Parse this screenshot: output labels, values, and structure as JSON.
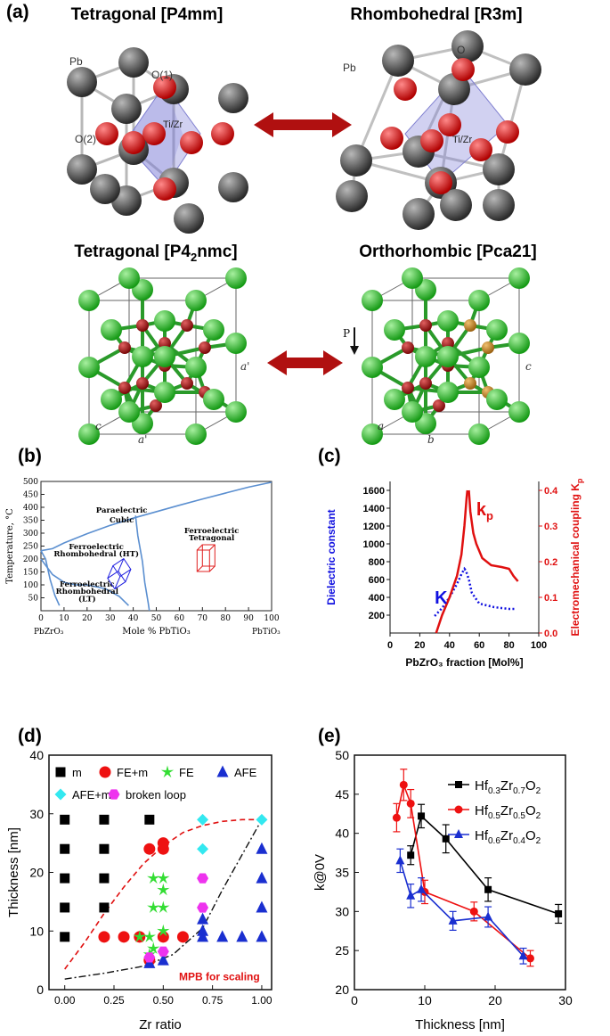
{
  "panel_a": {
    "label": "(a)",
    "structures": [
      {
        "title": "Tetragonal [P4mm]",
        "labels": [
          "Pb",
          "O(1)",
          "O(2)",
          "Ti/Zr"
        ]
      },
      {
        "title": "Rhombohedral [R3m]",
        "labels": [
          "Pb",
          "O",
          "Ti/Zr"
        ]
      },
      {
        "title_main": "Tetragonal [P4",
        "title_sub": "2",
        "title_end": "nmc]",
        "labels": [
          "a'",
          "a'",
          "c"
        ]
      },
      {
        "title": "Orthorhombic [Pca21]",
        "labels": [
          "P",
          "a",
          "b",
          "c"
        ]
      }
    ],
    "colors": {
      "pb": "#4a4a4a",
      "o": "#e01010",
      "octa": "#7b7bd8",
      "hf": "#22c022",
      "o2": "#a01010",
      "ox_y": "#c98a20",
      "arrow": "#b01010"
    }
  },
  "chart_data": [
    {
      "type": "phase-diagram",
      "panel": "(b)",
      "xlabel": "Mole % PbTiO₃",
      "ylabel": "Temperature, °C",
      "xlim": [
        0,
        100
      ],
      "ylim": [
        0,
        500
      ],
      "xticks": [
        0,
        10,
        20,
        30,
        40,
        50,
        60,
        70,
        80,
        90,
        100
      ],
      "yticks": [
        50,
        100,
        150,
        200,
        250,
        300,
        350,
        400,
        450,
        500
      ],
      "x_end_labels": [
        "PbZrO₃",
        "PbTiO₃"
      ],
      "regions": [
        "Paraelectric",
        "Cubic",
        "Ferroelectric",
        "Tetragonal",
        "Ferroelectric",
        "Rhombohedral (HT)",
        "Ferroelectric",
        "Rhombohedral",
        "(LT)"
      ],
      "curves": [
        {
          "name": "Curie",
          "x": [
            0,
            5,
            10,
            20,
            30,
            40,
            50,
            60,
            70,
            80,
            90,
            100
          ],
          "y": [
            232,
            240,
            262,
            298,
            330,
            358,
            383,
            408,
            432,
            455,
            478,
            497
          ]
        },
        {
          "name": "MPB",
          "x": [
            41,
            42,
            44,
            45,
            46.5,
            47
          ],
          "y": [
            368,
            290,
            190,
            110,
            30,
            0
          ]
        },
        {
          "name": "R-HT/LT",
          "x": [
            0,
            5,
            10,
            15,
            20,
            28,
            34,
            38
          ],
          "y": [
            200,
            140,
            110,
            100,
            100,
            85,
            55,
            20
          ]
        },
        {
          "name": "left",
          "x": [
            0,
            2,
            4,
            6,
            8
          ],
          "y": [
            232,
            200,
            120,
            60,
            20
          ]
        }
      ],
      "colors": {
        "line": "#5b8fd0",
        "tet": "#e02020",
        "rho": "#2020e0"
      }
    },
    {
      "type": "line",
      "panel": "(c)",
      "xlabel": "PbZrO₃ fraction [Mol%]",
      "ylabel_left": "Dielectric constant",
      "ylabel_right_main": "Electromechanical coupling K",
      "ylabel_right_sub": "p",
      "xlim": [
        0,
        100
      ],
      "ylim_left": [
        0,
        1700
      ],
      "ylim_right": [
        0,
        0.425
      ],
      "xticks": [
        0,
        20,
        40,
        60,
        80,
        100
      ],
      "yticks_left": [
        200,
        400,
        600,
        800,
        1000,
        1200,
        1400,
        1600
      ],
      "yticks_right": [
        0.0,
        0.1,
        0.2,
        0.3,
        0.4
      ],
      "series": [
        {
          "name": "K",
          "axis": "left",
          "style": "dotted",
          "color": "#1010e0",
          "x": [
            30,
            35,
            40,
            45,
            48,
            50,
            51,
            53,
            55,
            60,
            70,
            80,
            85
          ],
          "y": [
            190,
            280,
            400,
            550,
            660,
            720,
            700,
            600,
            450,
            330,
            290,
            270,
            270
          ]
        },
        {
          "name": "k",
          "sub": "p",
          "axis": "right",
          "style": "solid",
          "color": "#e01010",
          "x": [
            31,
            35,
            40,
            45,
            48,
            50,
            51.5,
            52
          ],
          "y": [
            0.0,
            0.05,
            0.1,
            0.16,
            0.22,
            0.3,
            0.38,
            0.4
          ]
        },
        {
          "name": "k_p_right",
          "axis": "right",
          "style": "solid",
          "color": "#e01010",
          "x": [
            53,
            54,
            56,
            58,
            62,
            68,
            75,
            80,
            83,
            86
          ],
          "y": [
            0.4,
            0.34,
            0.28,
            0.25,
            0.21,
            0.19,
            0.185,
            0.18,
            0.16,
            0.145
          ]
        }
      ]
    },
    {
      "type": "scatter",
      "panel": "(d)",
      "xlabel": "Zr ratio",
      "ylabel": "Thickness [nm]",
      "xlim": [
        -0.08,
        1.05
      ],
      "ylim": [
        0,
        40
      ],
      "xticks": [
        0.0,
        0.25,
        0.5,
        0.75,
        1.0
      ],
      "xticklabels": [
        "0.00",
        "0.25",
        "0.50",
        "0.75",
        "1.00"
      ],
      "yticks": [
        0,
        10,
        20,
        30,
        40
      ],
      "annotation": "MPB for scaling",
      "legend": [
        {
          "label": "m",
          "marker": "square",
          "color": "#000000"
        },
        {
          "label": "FE+m",
          "marker": "circle",
          "color": "#ee1111"
        },
        {
          "label": "FE",
          "marker": "star",
          "color": "#33dd33"
        },
        {
          "label": "AFE",
          "marker": "triangle",
          "color": "#1a2fd0"
        },
        {
          "label": "AFE+m",
          "marker": "diamond",
          "color": "#33e8f0"
        },
        {
          "label": "broken loop",
          "marker": "hexagon",
          "color": "#ee33ee"
        }
      ],
      "points": {
        "m": [
          [
            0,
            9
          ],
          [
            0,
            14
          ],
          [
            0,
            19
          ],
          [
            0,
            24
          ],
          [
            0,
            29
          ],
          [
            0.2,
            14
          ],
          [
            0.2,
            19
          ],
          [
            0.2,
            24
          ],
          [
            0.2,
            29
          ],
          [
            0.43,
            29
          ]
        ],
        "FE+m": [
          [
            0.2,
            9
          ],
          [
            0.3,
            9
          ],
          [
            0.43,
            24
          ],
          [
            0.5,
            24
          ],
          [
            0.5,
            25
          ],
          [
            0.38,
            9
          ],
          [
            0.5,
            9
          ],
          [
            0.43,
            5
          ],
          [
            0.6,
            9
          ]
        ],
        "FE": [
          [
            0.38,
            9
          ],
          [
            0.43,
            9
          ],
          [
            0.45,
            19
          ],
          [
            0.5,
            19
          ],
          [
            0.45,
            14
          ],
          [
            0.5,
            14
          ],
          [
            0.5,
            17
          ],
          [
            0.45,
            7
          ],
          [
            0.5,
            10
          ],
          [
            0.43,
            6
          ]
        ],
        "AFE": [
          [
            0.43,
            4.5
          ],
          [
            0.5,
            5
          ],
          [
            0.7,
            9
          ],
          [
            0.7,
            10
          ],
          [
            0.8,
            9
          ],
          [
            0.9,
            9
          ],
          [
            1.0,
            9
          ],
          [
            1.0,
            14
          ],
          [
            1.0,
            19
          ],
          [
            1.0,
            24
          ],
          [
            0.7,
            12
          ]
        ],
        "AFE+m": [
          [
            0.7,
            24
          ],
          [
            0.7,
            29
          ],
          [
            1.0,
            29
          ]
        ],
        "broken": [
          [
            0.43,
            5.5
          ],
          [
            0.5,
            6.5
          ],
          [
            0.7,
            14
          ],
          [
            0.7,
            19
          ]
        ]
      },
      "curves": {
        "red": {
          "x": [
            0.0,
            0.1,
            0.2,
            0.3,
            0.4,
            0.5,
            0.6,
            0.7,
            0.8,
            0.9,
            1.0
          ],
          "y": [
            3.5,
            8,
            13,
            17.5,
            21.5,
            24.5,
            26.8,
            28,
            28.7,
            29,
            29
          ]
        },
        "black": {
          "x": [
            0.0,
            0.2,
            0.4,
            0.55,
            0.7,
            0.8,
            0.9,
            1.0
          ],
          "y": [
            1.8,
            2.8,
            4.0,
            6.0,
            10.5,
            17,
            23,
            29
          ]
        }
      }
    },
    {
      "type": "line",
      "panel": "(e)",
      "xlabel": "Thickness [nm]",
      "ylabel": "k@0V",
      "xlim": [
        0,
        30
      ],
      "ylim": [
        20,
        50
      ],
      "xticks": [
        0,
        10,
        20,
        30
      ],
      "yticks": [
        20,
        25,
        30,
        35,
        40,
        45,
        50
      ],
      "series": [
        {
          "name": "Hf0.3Zr0.7O2",
          "legend": {
            "a": "Hf",
            "s1": "0.3",
            "b": "Zr",
            "s2": "0.7",
            "c": "O",
            "s3": "2"
          },
          "marker": "square",
          "color": "#000000",
          "x": [
            8,
            9.5,
            13,
            19,
            29
          ],
          "y": [
            37.2,
            42.2,
            39.3,
            32.8,
            29.7
          ],
          "err": [
            1.2,
            1.5,
            1.8,
            1.5,
            1.2
          ]
        },
        {
          "name": "Hf0.5Zr0.5O2",
          "legend": {
            "a": "Hf",
            "s1": "0.5",
            "b": "Zr",
            "s2": "0.5",
            "c": "O",
            "s3": "2"
          },
          "marker": "circle",
          "color": "#ee1111",
          "x": [
            6,
            7,
            8,
            10,
            17,
            25
          ],
          "y": [
            42,
            46.2,
            43.8,
            32.5,
            30,
            24
          ],
          "err": [
            1.8,
            2.0,
            1.8,
            1.5,
            1.2,
            1.0
          ]
        },
        {
          "name": "Hf0.6Zr0.4O2",
          "legend": {
            "a": "Hf",
            "s1": "0.6",
            "b": "Zr",
            "s2": "0.4",
            "c": "O",
            "s3": "2"
          },
          "marker": "triangle",
          "color": "#1a2fd0",
          "x": [
            6.5,
            8,
            9.5,
            14,
            19,
            24
          ],
          "y": [
            36.5,
            32,
            32.8,
            28.8,
            29.3,
            24.3
          ],
          "err": [
            1.5,
            1.5,
            1.5,
            1.2,
            1.3,
            1.0
          ]
        }
      ]
    }
  ]
}
